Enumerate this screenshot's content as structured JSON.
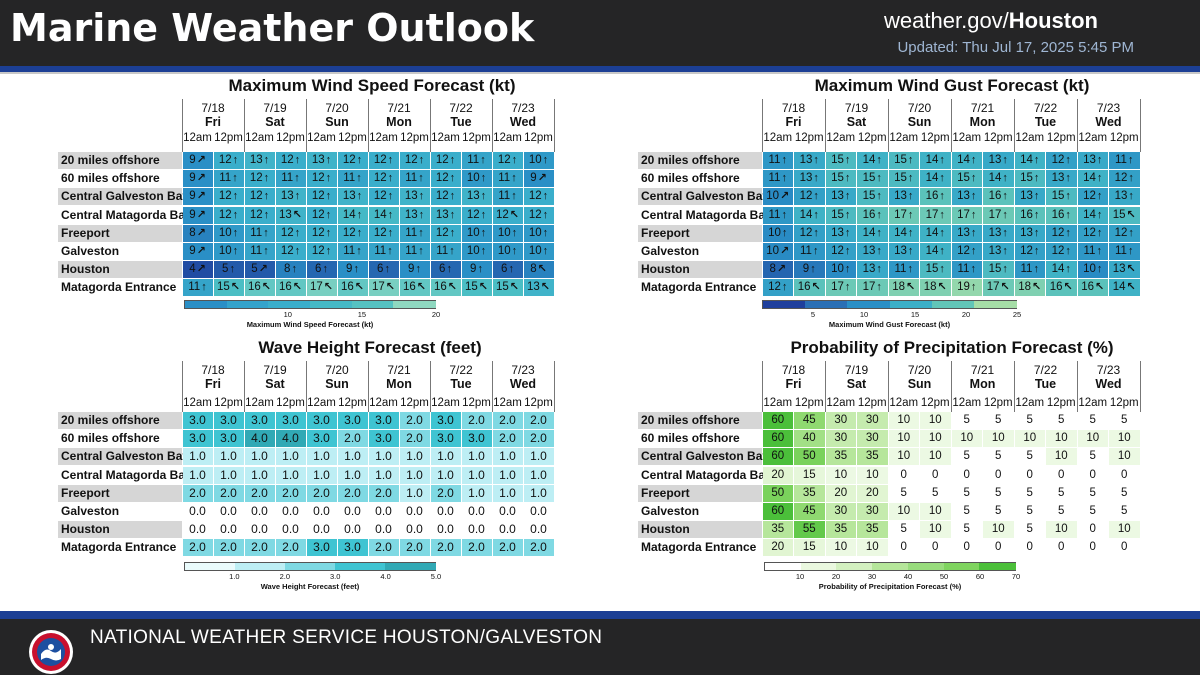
{
  "header": {
    "title": "Marine Weather Outlook",
    "site_prefix": "weather.gov/",
    "site_office": "Houston",
    "updated": "Updated: Thu Jul 17, 2025 5:45 PM"
  },
  "footer": {
    "text": "NATIONAL WEATHER SERVICE HOUSTON/GALVESTON",
    "logo": "nws-logo-icon"
  },
  "dates": [
    "7/18",
    "7/19",
    "7/20",
    "7/21",
    "7/22",
    "7/23"
  ],
  "days": [
    "Fri",
    "Sat",
    "Sun",
    "Mon",
    "Tue",
    "Wed"
  ],
  "times": [
    "12am",
    "12pm"
  ],
  "locations": [
    "20 miles offshore",
    "60 miles offshore",
    "Central Galveston Bay",
    "Central Matagorda Bay",
    "Freeport",
    "Galveston",
    "Houston",
    "Matagorda Entrance"
  ],
  "panels": {
    "wind": {
      "title": "Maximum Wind Speed Forecast (kt)",
      "legend_label": "Maximum Wind Speed Forecast (kt)",
      "legend_ticks": [
        "10",
        "15",
        "20"
      ],
      "legend_range": [
        3,
        20
      ],
      "values": [
        [
          9,
          12,
          13,
          12,
          13,
          12,
          12,
          12,
          12,
          11,
          12,
          10
        ],
        [
          9,
          11,
          12,
          11,
          12,
          11,
          12,
          11,
          12,
          10,
          11,
          9
        ],
        [
          9,
          12,
          12,
          13,
          12,
          13,
          12,
          13,
          12,
          13,
          11,
          12
        ],
        [
          9,
          12,
          12,
          13,
          12,
          14,
          14,
          13,
          13,
          12,
          12,
          12
        ],
        [
          8,
          10,
          11,
          12,
          12,
          12,
          12,
          11,
          12,
          10,
          10,
          10
        ],
        [
          9,
          10,
          11,
          12,
          12,
          11,
          11,
          11,
          11,
          10,
          10,
          10
        ],
        [
          4,
          5,
          5,
          8,
          6,
          9,
          6,
          9,
          6,
          9,
          6,
          8
        ],
        [
          11,
          15,
          16,
          16,
          17,
          16,
          17,
          16,
          16,
          15,
          15,
          13
        ]
      ],
      "arrows": [
        [
          "NE",
          "N",
          "N",
          "N",
          "N",
          "N",
          "N",
          "N",
          "N",
          "N",
          "N",
          "N"
        ],
        [
          "NE",
          "N",
          "N",
          "N",
          "N",
          "N",
          "N",
          "N",
          "N",
          "N",
          "N",
          "NE"
        ],
        [
          "NE",
          "N",
          "N",
          "N",
          "N",
          "N",
          "N",
          "N",
          "N",
          "N",
          "N",
          "N"
        ],
        [
          "NE",
          "N",
          "N",
          "NW",
          "N",
          "N",
          "N",
          "N",
          "N",
          "N",
          "NW",
          "N"
        ],
        [
          "NE",
          "N",
          "N",
          "N",
          "N",
          "N",
          "N",
          "N",
          "N",
          "N",
          "N",
          "N"
        ],
        [
          "NE",
          "N",
          "N",
          "N",
          "N",
          "N",
          "N",
          "N",
          "N",
          "N",
          "N",
          "N"
        ],
        [
          "NE",
          "N",
          "NE",
          "N",
          "N",
          "N",
          "N",
          "N",
          "N",
          "N",
          "N",
          "NW"
        ],
        [
          "N",
          "NW",
          "NW",
          "NW",
          "NW",
          "NW",
          "NW",
          "NW",
          "NW",
          "NW",
          "NW",
          "NW"
        ]
      ]
    },
    "gust": {
      "title": "Maximum Wind Gust Forecast (kt)",
      "legend_label": "Maximum Wind Gust Forecast (kt)",
      "legend_ticks": [
        "5",
        "10",
        "15",
        "20",
        "25"
      ],
      "legend_range": [
        0,
        25
      ],
      "values": [
        [
          11,
          13,
          15,
          14,
          15,
          14,
          14,
          13,
          14,
          12,
          13,
          11
        ],
        [
          11,
          13,
          15,
          15,
          15,
          14,
          15,
          14,
          15,
          13,
          14,
          12
        ],
        [
          10,
          12,
          13,
          15,
          13,
          16,
          13,
          16,
          13,
          15,
          12,
          13
        ],
        [
          11,
          14,
          15,
          16,
          17,
          17,
          17,
          17,
          16,
          16,
          14,
          15
        ],
        [
          10,
          12,
          13,
          14,
          14,
          14,
          13,
          13,
          13,
          12,
          12,
          12
        ],
        [
          10,
          11,
          12,
          13,
          13,
          14,
          12,
          13,
          12,
          12,
          11,
          11
        ],
        [
          8,
          9,
          10,
          13,
          11,
          15,
          11,
          15,
          11,
          14,
          10,
          13
        ],
        [
          12,
          16,
          17,
          17,
          18,
          18,
          19,
          17,
          18,
          16,
          16,
          14
        ]
      ],
      "arrows": [
        [
          "N",
          "N",
          "N",
          "N",
          "N",
          "N",
          "N",
          "N",
          "N",
          "N",
          "N",
          "N"
        ],
        [
          "N",
          "N",
          "N",
          "N",
          "N",
          "N",
          "N",
          "N",
          "N",
          "N",
          "N",
          "N"
        ],
        [
          "NE",
          "N",
          "N",
          "N",
          "N",
          "N",
          "N",
          "N",
          "N",
          "N",
          "N",
          "N"
        ],
        [
          "N",
          "N",
          "N",
          "N",
          "N",
          "N",
          "N",
          "N",
          "N",
          "N",
          "N",
          "NW"
        ],
        [
          "N",
          "N",
          "N",
          "N",
          "N",
          "N",
          "N",
          "N",
          "N",
          "N",
          "N",
          "N"
        ],
        [
          "NE",
          "N",
          "N",
          "N",
          "N",
          "N",
          "N",
          "N",
          "N",
          "N",
          "N",
          "N"
        ],
        [
          "NE",
          "N",
          "N",
          "N",
          "N",
          "N",
          "N",
          "N",
          "N",
          "N",
          "N",
          "NW"
        ],
        [
          "N",
          "NW",
          "N",
          "N",
          "NW",
          "NW",
          "N",
          "NW",
          "NW",
          "NW",
          "NW",
          "NW"
        ]
      ]
    },
    "wave": {
      "title": "Wave Height Forecast (feet)",
      "legend_label": "Wave Height Forecast (feet)",
      "legend_ticks": [
        "1.0",
        "2.0",
        "3.0",
        "4.0",
        "5.0"
      ],
      "legend_range": [
        0,
        5
      ],
      "values": [
        [
          "3.0",
          "3.0",
          "3.0",
          "3.0",
          "3.0",
          "3.0",
          "3.0",
          "2.0",
          "3.0",
          "2.0",
          "2.0",
          "2.0"
        ],
        [
          "3.0",
          "3.0",
          "4.0",
          "4.0",
          "3.0",
          "2.0",
          "3.0",
          "2.0",
          "3.0",
          "3.0",
          "2.0",
          "2.0"
        ],
        [
          "1.0",
          "1.0",
          "1.0",
          "1.0",
          "1.0",
          "1.0",
          "1.0",
          "1.0",
          "1.0",
          "1.0",
          "1.0",
          "1.0"
        ],
        [
          "1.0",
          "1.0",
          "1.0",
          "1.0",
          "1.0",
          "1.0",
          "1.0",
          "1.0",
          "1.0",
          "1.0",
          "1.0",
          "1.0"
        ],
        [
          "2.0",
          "2.0",
          "2.0",
          "2.0",
          "2.0",
          "2.0",
          "2.0",
          "1.0",
          "2.0",
          "1.0",
          "1.0",
          "1.0"
        ],
        [
          "0.0",
          "0.0",
          "0.0",
          "0.0",
          "0.0",
          "0.0",
          "0.0",
          "0.0",
          "0.0",
          "0.0",
          "0.0",
          "0.0"
        ],
        [
          "0.0",
          "0.0",
          "0.0",
          "0.0",
          "0.0",
          "0.0",
          "0.0",
          "0.0",
          "0.0",
          "0.0",
          "0.0",
          "0.0"
        ],
        [
          "2.0",
          "2.0",
          "2.0",
          "2.0",
          "3.0",
          "3.0",
          "2.0",
          "2.0",
          "2.0",
          "2.0",
          "2.0",
          "2.0"
        ]
      ]
    },
    "pop": {
      "title": "Probability of Precipitation Forecast (%)",
      "legend_label": "Probability of Precipitation Forecast (%)",
      "legend_ticks": [
        "10",
        "20",
        "30",
        "40",
        "50",
        "60",
        "70"
      ],
      "legend_range": [
        0,
        70
      ],
      "values": [
        [
          60,
          45,
          30,
          30,
          10,
          10,
          5,
          5,
          5,
          5,
          5,
          5
        ],
        [
          60,
          40,
          30,
          30,
          10,
          10,
          10,
          10,
          10,
          10,
          10,
          10
        ],
        [
          60,
          50,
          35,
          35,
          10,
          10,
          5,
          5,
          5,
          10,
          5,
          10
        ],
        [
          20,
          15,
          10,
          10,
          0,
          0,
          0,
          0,
          0,
          0,
          0,
          0
        ],
        [
          50,
          35,
          20,
          20,
          5,
          5,
          5,
          5,
          5,
          5,
          5,
          5
        ],
        [
          60,
          45,
          30,
          30,
          10,
          10,
          5,
          5,
          5,
          5,
          5,
          5
        ],
        [
          35,
          55,
          35,
          35,
          5,
          10,
          5,
          10,
          5,
          10,
          0,
          10
        ],
        [
          20,
          15,
          10,
          10,
          0,
          0,
          0,
          0,
          0,
          0,
          0,
          0
        ]
      ]
    }
  }
}
